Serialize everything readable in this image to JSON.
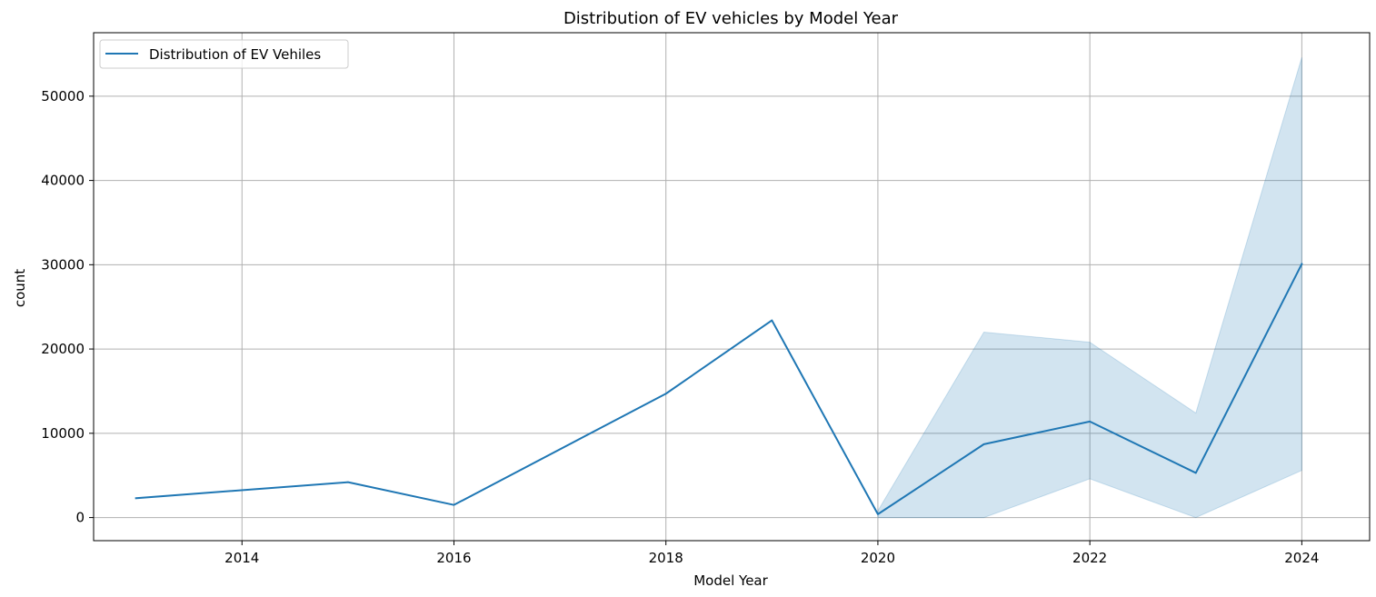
{
  "chart_data": {
    "type": "line",
    "title": "Distribution of EV vehicles by Model Year",
    "xlabel": "Model Year",
    "ylabel": "count",
    "xlim": [
      2012.6,
      2024.64
    ],
    "ylim": [
      -2740,
      57530
    ],
    "xticks": [
      2014,
      2016,
      2018,
      2020,
      2022,
      2024
    ],
    "yticks": [
      0,
      10000,
      20000,
      30000,
      40000,
      50000
    ],
    "grid": true,
    "legend_position": "top-left",
    "series": [
      {
        "name": "Distribution of EV Vehiles",
        "color": "#1f77b4",
        "x": [
          2013,
          2015,
          2016,
          2018,
          2019,
          2020,
          2021,
          2022,
          2023,
          2024
        ],
        "y": [
          2300,
          4200,
          1500,
          14700,
          23400,
          400,
          8700,
          11400,
          5300,
          30100
        ],
        "ci_lower": [
          null,
          null,
          null,
          null,
          null,
          0,
          0,
          4600,
          0,
          5600
        ],
        "ci_upper": [
          null,
          null,
          null,
          null,
          null,
          800,
          22000,
          20800,
          12400,
          54600
        ]
      }
    ]
  }
}
